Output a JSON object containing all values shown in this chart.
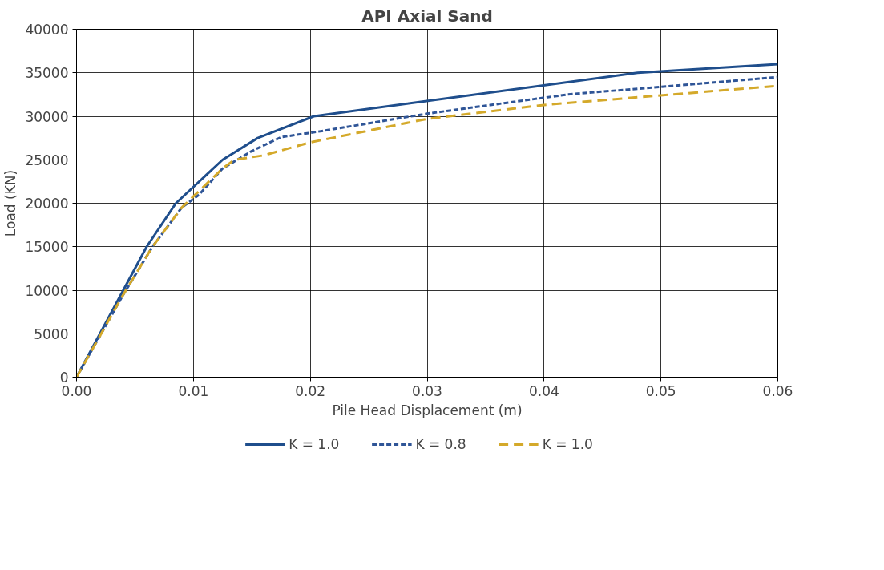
{
  "chart_data": {
    "type": "line",
    "title": "API Axial Sand",
    "xlabel": "Pile Head Displacement (m)",
    "ylabel": "Load (KN)",
    "xlim": [
      0,
      0.06
    ],
    "xticks": [
      {
        "value": 0,
        "label": "0.00"
      },
      {
        "value": 0.01,
        "label": "0.01"
      },
      {
        "value": 0.02,
        "label": "0.02"
      },
      {
        "value": 0.03,
        "label": "0.03"
      },
      {
        "value": 0.04,
        "label": "0.04"
      },
      {
        "value": 0.05,
        "label": "0.05"
      },
      {
        "value": 0.06,
        "label": "0.06"
      }
    ],
    "ylim": [
      0,
      40000
    ],
    "yticks": [
      0,
      5000,
      10000,
      15000,
      20000,
      25000,
      30000,
      35000,
      40000
    ],
    "grid": true,
    "legend": "bottom",
    "series": [
      {
        "name": "K = 1.0",
        "color": "#1f4e8c",
        "line_style": "solid",
        "x": [
          0,
          0.004,
          0.006,
          0.0085,
          0.0125,
          0.0155,
          0.0203,
          0.048,
          0.06
        ],
        "values": [
          0,
          10000,
          15000,
          20000,
          25000,
          27500,
          30000,
          35000,
          36000
        ]
      },
      {
        "name": "K = 0.8",
        "color": "#2f5597",
        "line_style": "dashed",
        "x": [
          0,
          0.004,
          0.0065,
          0.009,
          0.0105,
          0.0125,
          0.015,
          0.0175,
          0.021,
          0.03,
          0.042,
          0.06
        ],
        "values": [
          0,
          9500,
          15000,
          19500,
          21000,
          24000,
          26000,
          27600,
          28300,
          30300,
          32500,
          34500
        ]
      },
      {
        "name": "K = 1.0",
        "color": "#d4a92a",
        "line_style": "dashed",
        "x": [
          0,
          0.004,
          0.0065,
          0.009,
          0.0125,
          0.0135,
          0.016,
          0.02,
          0.03,
          0.04,
          0.06
        ],
        "values": [
          0,
          9500,
          15000,
          19500,
          24000,
          25000,
          25500,
          27000,
          29700,
          31300,
          33500
        ]
      }
    ]
  }
}
